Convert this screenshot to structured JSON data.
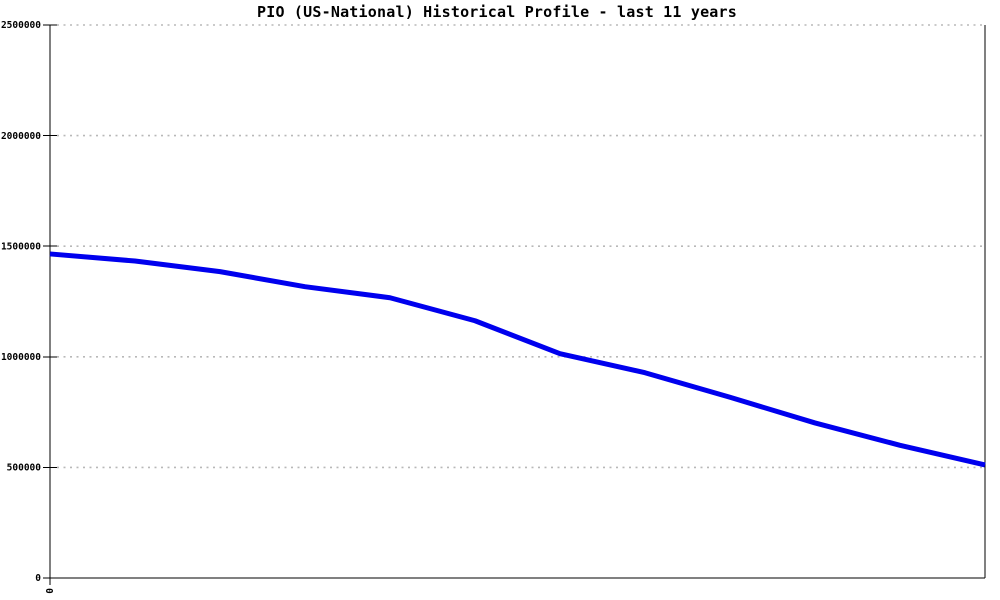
{
  "page": {
    "title": "PIO (US-National) Historical Profile - last 11 years"
  },
  "colors": {
    "line": "#0000ee",
    "grid": "#b8b8b8",
    "axis": "#000000",
    "text": "#000000",
    "background": "#ffffff"
  },
  "chart_data": {
    "type": "line",
    "title": "PIO (US-National) Historical Profile - last 11 years",
    "x": [
      0,
      1,
      2,
      3,
      4,
      5,
      6,
      7,
      8,
      9,
      10,
      11
    ],
    "series": [
      {
        "name": "PIO (US-National)",
        "values": [
          1465000,
          1433000,
          1385000,
          1317000,
          1267000,
          1163000,
          1014000,
          928000,
          817000,
          701000,
          600000,
          511000
        ]
      }
    ],
    "xlabel": "",
    "ylabel": "",
    "xlim": [
      0,
      11
    ],
    "ylim": [
      0,
      2500000
    ],
    "y_ticks": [
      0,
      500000,
      1000000,
      1500000,
      2000000,
      2500000
    ],
    "y_tick_labels": [
      "0",
      "500000",
      "1000000",
      "1500000",
      "2000000",
      "2500000"
    ],
    "x_ticks": [
      0
    ],
    "x_tick_labels": [
      "0"
    ],
    "x_tick_label_rotation": 90,
    "grid": true,
    "grid_style": "dotted",
    "legend_position": "none"
  }
}
